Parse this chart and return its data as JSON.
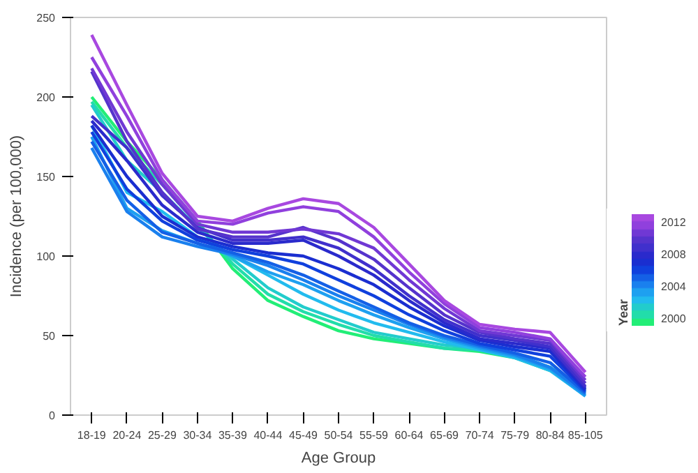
{
  "chart_data": {
    "type": "line",
    "xlabel": "Age Group",
    "ylabel": "Incidence (per 100,000)",
    "clabel": "Year",
    "categories": [
      "18-19",
      "20-24",
      "25-29",
      "30-34",
      "35-39",
      "40-44",
      "45-49",
      "50-54",
      "55-59",
      "60-64",
      "65-69",
      "70-74",
      "75-79",
      "80-84",
      "85-105"
    ],
    "ylim": [
      0,
      250
    ],
    "yticks": [
      0,
      50,
      100,
      150,
      200,
      250
    ],
    "grid": false,
    "clim": [
      1999,
      2013
    ],
    "cticks": [
      2000,
      2004,
      2008,
      2012
    ],
    "series": [
      {
        "color": "#22ee77",
        "values": [
          200,
          172,
          148,
          122,
          92,
          72,
          62,
          53,
          48,
          45,
          42,
          40,
          36,
          28,
          16
        ]
      },
      {
        "color": "#22ddaa",
        "values": [
          197,
          168,
          145,
          120,
          95,
          76,
          65,
          57,
          50,
          46,
          42,
          41,
          37,
          30,
          15
        ]
      },
      {
        "color": "#22cccc",
        "values": [
          195,
          160,
          140,
          118,
          98,
          80,
          68,
          60,
          52,
          48,
          44,
          42,
          38,
          30,
          14
        ]
      },
      {
        "color": "#22bbee",
        "values": [
          182,
          140,
          128,
          112,
          100,
          88,
          76,
          66,
          58,
          52,
          46,
          41,
          36,
          28,
          12
        ]
      },
      {
        "color": "#1ea0f0",
        "values": [
          175,
          130,
          116,
          108,
          100,
          90,
          82,
          72,
          63,
          55,
          48,
          42,
          37,
          29,
          12
        ]
      },
      {
        "color": "#1a80ee",
        "values": [
          168,
          128,
          112,
          106,
          101,
          94,
          85,
          75,
          66,
          57,
          49,
          43,
          38,
          30,
          13
        ]
      },
      {
        "color": "#1460e6",
        "values": [
          172,
          135,
          115,
          108,
          102,
          96,
          88,
          78,
          68,
          58,
          50,
          44,
          39,
          33,
          14
        ]
      },
      {
        "color": "#1040dd",
        "values": [
          178,
          142,
          122,
          110,
          104,
          100,
          95,
          85,
          75,
          63,
          53,
          45,
          41,
          37,
          15
        ]
      },
      {
        "color": "#1a2ed0",
        "values": [
          182,
          150,
          125,
          112,
          106,
          102,
          100,
          92,
          82,
          68,
          56,
          47,
          43,
          40,
          16
        ]
      },
      {
        "color": "#2a2acc",
        "values": [
          185,
          160,
          132,
          115,
          108,
          108,
          110,
          100,
          88,
          72,
          58,
          48,
          45,
          42,
          17
        ]
      },
      {
        "color": "#4030cc",
        "values": [
          188,
          168,
          138,
          118,
          110,
          110,
          112,
          105,
          92,
          75,
          60,
          50,
          47,
          43,
          18
        ]
      },
      {
        "color": "#5533cc",
        "values": [
          216,
          172,
          140,
          117,
          112,
          112,
          118,
          110,
          98,
          80,
          63,
          52,
          48,
          45,
          20
        ]
      },
      {
        "color": "#7038d4",
        "values": [
          218,
          178,
          145,
          120,
          115,
          115,
          117,
          114,
          105,
          85,
          67,
          53,
          50,
          47,
          22
        ]
      },
      {
        "color": "#9040dd",
        "values": [
          225,
          188,
          148,
          122,
          120,
          127,
          131,
          128,
          112,
          90,
          70,
          55,
          52,
          48,
          24
        ]
      },
      {
        "color": "#a848e0",
        "values": [
          239,
          195,
          152,
          125,
          122,
          130,
          136,
          133,
          118,
          95,
          72,
          57,
          54,
          52,
          27
        ]
      }
    ]
  }
}
